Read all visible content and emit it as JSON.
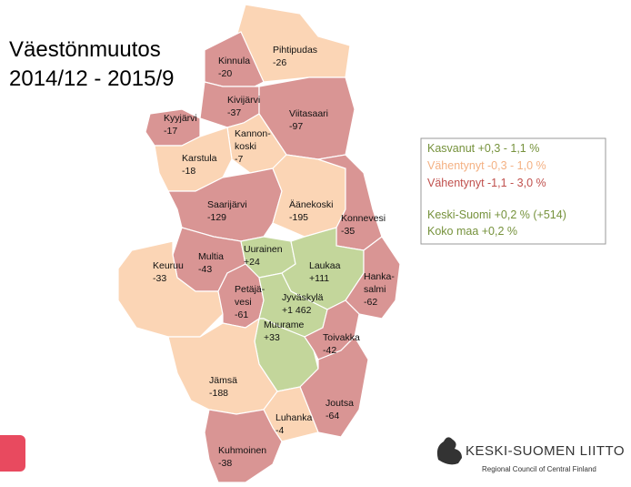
{
  "title": [
    "Väestönmuutos",
    "2014/12 - 2015/9"
  ],
  "legend": [
    {
      "label": "Kasvanut +0,3 - 1,1 %",
      "color": "#76923c"
    },
    {
      "label": "Vähentynyt -0,3 - 1,0 %",
      "color": "#f4b183"
    },
    {
      "label": "Vähentynyt -1,1 - 3,0 %",
      "color": "#c0504d"
    },
    {
      "label": "Keski-Suomi +0,2 % (+514)",
      "color": "#76923c"
    },
    {
      "label": "Koko maa +0,2 %",
      "color": "#76923c"
    }
  ],
  "municipalities": [
    {
      "name": "Pihtipudas",
      "value": "-26",
      "color": "#fbd5b5"
    },
    {
      "name": "Kinnula",
      "value": "-20",
      "color": "#d99594"
    },
    {
      "name": "Kivijärvi",
      "value": "-37",
      "color": "#d99594"
    },
    {
      "name": "Viitasaari",
      "value": "-97",
      "color": "#d99594"
    },
    {
      "name": "Kyyjärvi",
      "value": "-17",
      "color": "#d99594"
    },
    {
      "name": [
        "Kannon-",
        "koski"
      ],
      "value": "-7",
      "color": "#fbd5b5"
    },
    {
      "name": "Karstula",
      "value": "-18",
      "color": "#fbd5b5"
    },
    {
      "name": "Saarijärvi",
      "value": "-129",
      "color": "#d99594"
    },
    {
      "name": "Äänekoski",
      "value": "-195",
      "color": "#fbd5b5"
    },
    {
      "name": "Konnevesi",
      "value": "-35",
      "color": "#d99594"
    },
    {
      "name": "Multia",
      "value": "-43",
      "color": "#d99594"
    },
    {
      "name": "Keuruu",
      "value": "-33",
      "color": "#fbd5b5"
    },
    {
      "name": "Uurainen",
      "value": "+24",
      "color": "#c3d69b"
    },
    {
      "name": "Laukaa",
      "value": "+111",
      "color": "#c3d69b"
    },
    {
      "name": [
        "Hanka-",
        "salmi"
      ],
      "value": "-62",
      "color": "#d99594"
    },
    {
      "name": [
        "Petäjä-",
        "vesi"
      ],
      "value": "-61",
      "color": "#d99594"
    },
    {
      "name": "Jyväskylä",
      "value": "+1 462",
      "color": "#c3d69b"
    },
    {
      "name": "Muurame",
      "value": "+33",
      "color": "#c3d69b"
    },
    {
      "name": "Toivakka",
      "value": "-42",
      "color": "#d99594"
    },
    {
      "name": "Jämsä",
      "value": "-188",
      "color": "#fbd5b5"
    },
    {
      "name": "Joutsa",
      "value": "-64",
      "color": "#d99594"
    },
    {
      "name": "Luhanka",
      "value": "-4",
      "color": "#fbd5b5"
    },
    {
      "name": "Kuhmoinen",
      "value": "-38",
      "color": "#d99594"
    }
  ],
  "logo": {
    "name": "KESKI-SUOMEN LIITTO",
    "subtitle": "Regional Council of Central Finland"
  }
}
